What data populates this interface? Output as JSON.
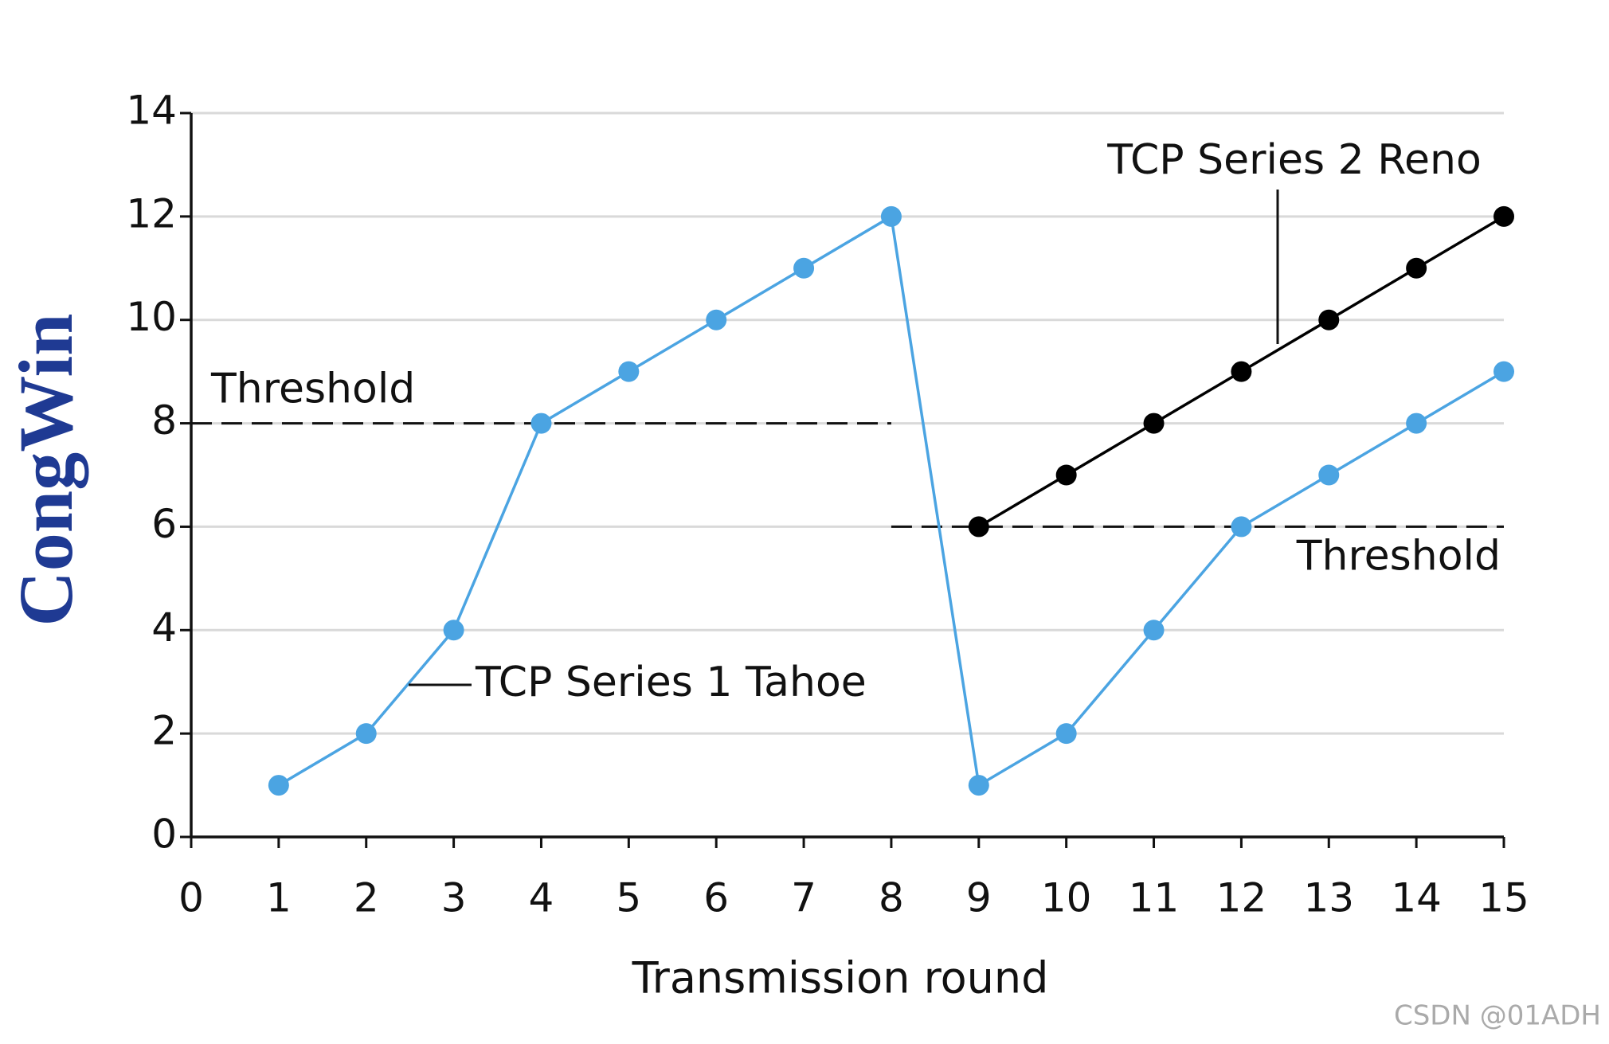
{
  "chart_data": {
    "type": "line",
    "y_label": "CongWin",
    "x_label": "Transmission round",
    "x": [
      1,
      2,
      3,
      4,
      5,
      6,
      7,
      8,
      9,
      10,
      11,
      12,
      13,
      14,
      15
    ],
    "series": [
      {
        "name": "TCP Series 1 Tahoe",
        "color": "#4ba4e2",
        "values": [
          1,
          2,
          4,
          8,
          9,
          10,
          11,
          12,
          1,
          2,
          4,
          6,
          7,
          8,
          9
        ]
      },
      {
        "name": "TCP Series 2 Reno",
        "color": "#000000",
        "values": [
          null,
          null,
          null,
          null,
          null,
          null,
          null,
          null,
          6,
          7,
          8,
          9,
          10,
          11,
          12
        ]
      }
    ],
    "thresholds": [
      {
        "label": "Threshold",
        "value": 8,
        "x": [
          0,
          8
        ]
      },
      {
        "label": "Threshold",
        "value": 6,
        "x": [
          8,
          15
        ]
      }
    ],
    "xlim": [
      0,
      15
    ],
    "ylim": [
      0,
      14
    ],
    "xticks": [
      0,
      1,
      2,
      3,
      4,
      5,
      6,
      7,
      8,
      9,
      10,
      11,
      12,
      13,
      14,
      15
    ],
    "yticks": [
      0,
      2,
      4,
      6,
      8,
      10,
      12,
      14
    ],
    "grid": true,
    "watermark": "CSDN @01ADH"
  }
}
